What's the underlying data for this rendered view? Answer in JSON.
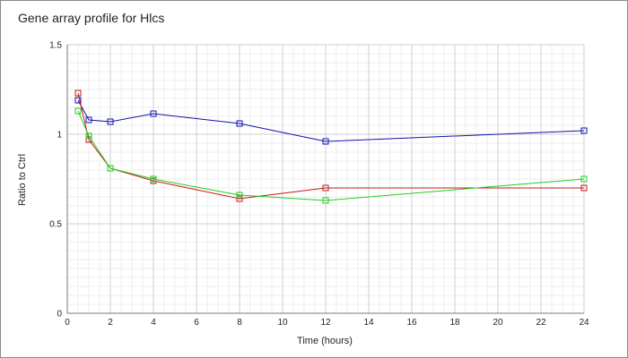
{
  "chart_data": {
    "type": "line",
    "title": "Gene array profile for Hlcs",
    "xlabel": "Time (hours)",
    "ylabel": "Ratio to Ctrl",
    "xlim": [
      0,
      24
    ],
    "ylim": [
      0,
      1.5
    ],
    "x_ticks": [
      0,
      2,
      4,
      6,
      8,
      10,
      12,
      14,
      16,
      18,
      20,
      22,
      24
    ],
    "y_ticks": [
      0,
      0.5,
      1,
      1.5
    ],
    "x_tick_labels": [
      "0",
      "2",
      "4",
      "6",
      "8",
      "10",
      "12",
      "14",
      "16",
      "18",
      "20",
      "22",
      "24"
    ],
    "y_tick_labels": [
      "0",
      "0.5",
      "1",
      "1.5"
    ],
    "grid": true,
    "marker": "square",
    "series": [
      {
        "color": "#1010b0",
        "x": [
          0.5,
          1,
          2,
          4,
          8,
          12,
          24
        ],
        "y": [
          1.19,
          1.08,
          1.07,
          1.115,
          1.06,
          0.96,
          1.02
        ]
      },
      {
        "color": "#c81818",
        "x": [
          0.5,
          1,
          2,
          4,
          8,
          12,
          24
        ],
        "y": [
          1.23,
          0.97,
          0.81,
          0.74,
          0.64,
          0.7,
          0.7
        ]
      },
      {
        "color": "#22cc22",
        "x": [
          0.5,
          1,
          2,
          4,
          8,
          12,
          24
        ],
        "y": [
          1.13,
          0.99,
          0.81,
          0.75,
          0.66,
          0.63,
          0.75
        ]
      }
    ]
  }
}
